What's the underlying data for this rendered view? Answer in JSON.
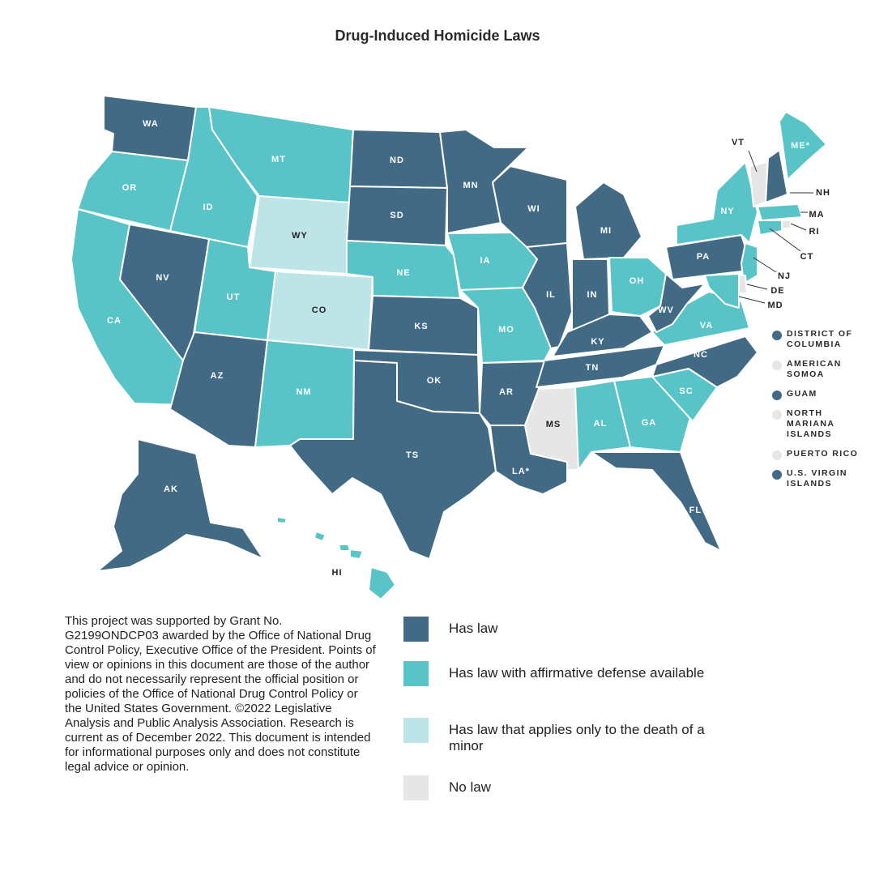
{
  "title": "Drug-Induced Homicide Laws",
  "colors": {
    "has_law": "#426a85",
    "affirmative_defense": "#58c4c7",
    "minor_only": "#bde4e6",
    "no_law": "#e6e6e6"
  },
  "states": [
    {
      "abbr": "WA",
      "category": "has_law"
    },
    {
      "abbr": "OR",
      "category": "affirmative_defense"
    },
    {
      "abbr": "CA",
      "category": "affirmative_defense"
    },
    {
      "abbr": "NV",
      "category": "has_law"
    },
    {
      "abbr": "ID",
      "category": "affirmative_defense"
    },
    {
      "abbr": "MT",
      "category": "affirmative_defense"
    },
    {
      "abbr": "WY",
      "category": "minor_only"
    },
    {
      "abbr": "UT",
      "category": "affirmative_defense"
    },
    {
      "abbr": "CO",
      "category": "minor_only"
    },
    {
      "abbr": "AZ",
      "category": "has_law"
    },
    {
      "abbr": "NM",
      "category": "affirmative_defense"
    },
    {
      "abbr": "ND",
      "category": "has_law"
    },
    {
      "abbr": "SD",
      "category": "has_law"
    },
    {
      "abbr": "NE",
      "category": "affirmative_defense"
    },
    {
      "abbr": "KS",
      "category": "has_law"
    },
    {
      "abbr": "OK",
      "category": "has_law"
    },
    {
      "abbr": "TS",
      "category": "has_law"
    },
    {
      "abbr": "MN",
      "category": "has_law"
    },
    {
      "abbr": "IA",
      "category": "affirmative_defense"
    },
    {
      "abbr": "MO",
      "category": "affirmative_defense"
    },
    {
      "abbr": "AR",
      "category": "has_law"
    },
    {
      "abbr": "LA*",
      "category": "has_law"
    },
    {
      "abbr": "WI",
      "category": "has_law"
    },
    {
      "abbr": "IL",
      "category": "has_law"
    },
    {
      "abbr": "MI",
      "category": "has_law"
    },
    {
      "abbr": "IN",
      "category": "has_law"
    },
    {
      "abbr": "OH",
      "category": "affirmative_defense"
    },
    {
      "abbr": "KY",
      "category": "has_law"
    },
    {
      "abbr": "TN",
      "category": "has_law"
    },
    {
      "abbr": "MS",
      "category": "no_law"
    },
    {
      "abbr": "AL",
      "category": "affirmative_defense"
    },
    {
      "abbr": "GA",
      "category": "affirmative_defense"
    },
    {
      "abbr": "FL*",
      "category": "has_law"
    },
    {
      "abbr": "SC",
      "category": "affirmative_defense"
    },
    {
      "abbr": "NC",
      "category": "has_law"
    },
    {
      "abbr": "VA",
      "category": "affirmative_defense"
    },
    {
      "abbr": "WV",
      "category": "has_law"
    },
    {
      "abbr": "PA",
      "category": "has_law"
    },
    {
      "abbr": "NY",
      "category": "affirmative_defense"
    },
    {
      "abbr": "ME*",
      "category": "affirmative_defense"
    },
    {
      "abbr": "VT",
      "category": "no_law"
    },
    {
      "abbr": "NH",
      "category": "has_law"
    },
    {
      "abbr": "MA",
      "category": "affirmative_defense"
    },
    {
      "abbr": "RI",
      "category": "no_law"
    },
    {
      "abbr": "CT",
      "category": "affirmative_defense"
    },
    {
      "abbr": "NJ",
      "category": "affirmative_defense"
    },
    {
      "abbr": "DE",
      "category": "no_law"
    },
    {
      "abbr": "MD",
      "category": "affirmative_defense"
    },
    {
      "abbr": "AK",
      "category": "has_law"
    },
    {
      "abbr": "HI",
      "category": "affirmative_defense"
    }
  ],
  "territories": [
    {
      "name": "DISTRICT OF COLUMBIA",
      "category": "has_law"
    },
    {
      "name": "AMERICAN SOMOA",
      "category": "no_law"
    },
    {
      "name": "GUAM",
      "category": "has_law"
    },
    {
      "name": "NORTH MARIANA ISLANDS",
      "category": "no_law"
    },
    {
      "name": "PUERTO RICO",
      "category": "no_law"
    },
    {
      "name": "U.S. VIRGIN ISLANDS",
      "category": "has_law"
    }
  ],
  "legend": [
    {
      "label": "Has law",
      "category": "has_law"
    },
    {
      "label": "Has law with affirmative defense available",
      "category": "affirmative_defense"
    },
    {
      "label": "Has law that applies only to the death of a minor",
      "category": "minor_only"
    },
    {
      "label": "No law",
      "category": "no_law"
    }
  ],
  "note": "This project was supported by Grant No. G2199ONDCP03 awarded by the Office of National Drug Control Policy, Executive Office of the President. Points of view or opinions in this document are those of the author and do not necessarily represent the official position or policies of the Office of National Drug Control Policy or the United States Government. ©2022 Legislative Analysis and Public Analysis Association. Research is current as of December 2022. This document is intended for informational purposes only and does not constitute legal advice or opinion."
}
